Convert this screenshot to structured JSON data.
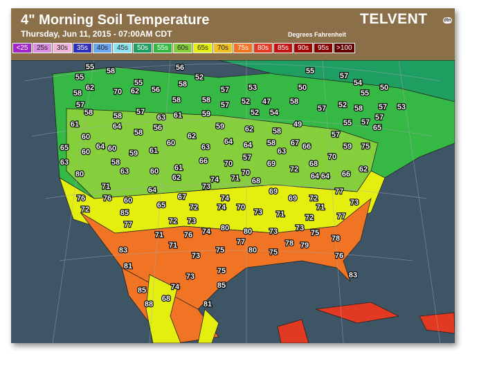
{
  "header": {
    "title": "4\" Morning Soil Temperature",
    "subtitle": "Thursday, Jun 11, 2015 - 07:00AM CDT",
    "units": "Degrees Fahrenheit",
    "brand": "TELVENT",
    "brand_mark": "dtn"
  },
  "legend": [
    {
      "label": "<25",
      "color": "#a326c9"
    },
    {
      "label": "25s",
      "color": "#d98fe0"
    },
    {
      "label": "30s",
      "color": "#f2b4d6"
    },
    {
      "label": "35s",
      "color": "#2f2fb8"
    },
    {
      "label": "40s",
      "color": "#6aa6ee"
    },
    {
      "label": "45s",
      "color": "#8ce3f0"
    },
    {
      "label": "50s",
      "color": "#1f9e62"
    },
    {
      "label": "55s",
      "color": "#35b944"
    },
    {
      "label": "60s",
      "color": "#86cf3c"
    },
    {
      "label": "65s",
      "color": "#e4ef10"
    },
    {
      "label": "70s",
      "color": "#f2bf22"
    },
    {
      "label": "75s",
      "color": "#f07423"
    },
    {
      "label": "80s",
      "color": "#e23a22"
    },
    {
      "label": "85s",
      "color": "#c21313"
    },
    {
      "label": "90s",
      "color": "#a00505"
    },
    {
      "label": "95s",
      "color": "#830000"
    },
    {
      "label": ">100",
      "color": "#620000"
    }
  ],
  "stations": [
    55,
    58,
    55,
    56,
    52,
    58,
    57,
    53,
    55,
    57,
    54,
    50,
    55,
    50,
    55,
    58,
    62,
    70,
    62,
    56,
    57,
    58,
    58,
    58,
    57,
    52,
    47,
    58,
    52,
    58,
    57,
    57,
    53,
    57,
    58,
    57,
    63,
    61,
    59,
    52,
    54,
    64,
    58,
    56,
    61,
    59,
    62,
    58,
    49,
    57,
    55,
    57,
    65,
    60,
    64,
    60,
    59,
    61,
    60,
    62,
    63,
    64,
    64,
    58,
    63,
    67,
    66,
    59,
    75,
    65,
    60,
    63,
    58,
    63,
    60,
    61,
    62,
    66,
    70,
    57,
    69,
    72,
    68,
    70,
    80,
    70,
    68,
    74,
    71,
    64,
    64,
    66,
    62,
    73,
    64,
    69,
    77,
    71,
    76,
    60,
    67,
    74,
    69,
    72,
    73,
    76,
    72,
    65,
    72,
    74,
    70,
    73,
    71,
    85,
    77,
    72,
    73,
    71,
    72,
    77,
    74,
    80,
    80,
    73,
    73,
    75,
    71,
    76,
    77,
    80,
    75,
    78,
    79,
    78,
    83,
    71,
    73,
    75,
    76,
    81,
    75,
    73,
    83,
    74,
    85,
    85,
    68,
    88,
    81
  ]
}
